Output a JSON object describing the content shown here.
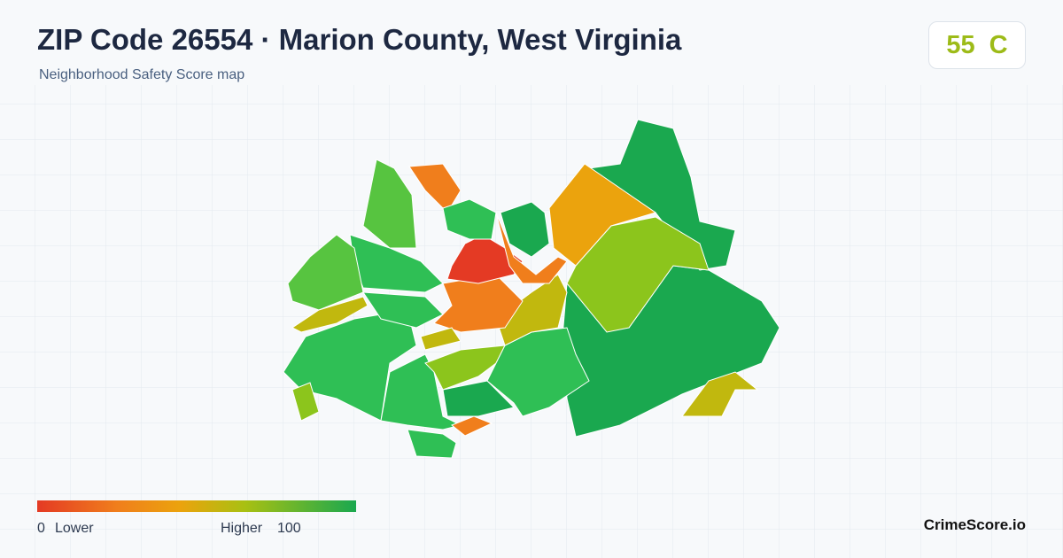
{
  "header": {
    "title": "ZIP Code 26554 · Marion County, West Virginia",
    "subtitle": "Neighborhood Safety Score map"
  },
  "score": {
    "value": 55,
    "grade": "C"
  },
  "legend": {
    "min": 0,
    "min_label": "Lower",
    "max_label": "Higher",
    "max": 100
  },
  "footer": {
    "brand": "CrimeScore.io"
  }
}
